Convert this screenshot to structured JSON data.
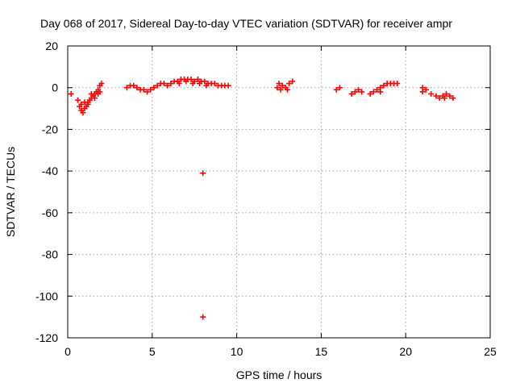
{
  "chart_data": {
    "type": "scatter",
    "title": "Day 068 of 2017, Sidereal Day-to-day VTEC variation (SDTVAR) for receiver ampr",
    "xlabel": "GPS time / hours",
    "ylabel": "SDTVAR / TECUs",
    "xlim": [
      0,
      25
    ],
    "ylim": [
      -120,
      20
    ],
    "xticks": [
      "0",
      "5",
      "10",
      "15",
      "20",
      "25"
    ],
    "yticks": [
      "20",
      "0",
      "-20",
      "-40",
      "-60",
      "-80",
      "-100",
      "-120"
    ],
    "grid": true,
    "marker": "plus",
    "color": "#ff0000",
    "series": [
      {
        "name": "SDTVAR",
        "points": [
          [
            0.2,
            -3
          ],
          [
            0.6,
            -6
          ],
          [
            0.7,
            -9
          ],
          [
            0.8,
            -11
          ],
          [
            0.9,
            -12
          ],
          [
            1.0,
            -10
          ],
          [
            1.1,
            -9
          ],
          [
            1.2,
            -7
          ],
          [
            1.3,
            -6
          ],
          [
            1.4,
            -5
          ],
          [
            1.5,
            -4
          ],
          [
            1.6,
            -3
          ],
          [
            1.7,
            -2
          ],
          [
            1.8,
            -1
          ],
          [
            1.9,
            1
          ],
          [
            2.0,
            2
          ],
          [
            0.8,
            -8
          ],
          [
            1.0,
            -7
          ],
          [
            1.2,
            -8
          ],
          [
            1.4,
            -3
          ],
          [
            1.6,
            -5
          ],
          [
            1.8,
            -3
          ],
          [
            1.9,
            -2
          ],
          [
            3.5,
            0
          ],
          [
            3.7,
            1
          ],
          [
            3.9,
            1
          ],
          [
            4.1,
            0
          ],
          [
            4.3,
            -1
          ],
          [
            4.5,
            -1
          ],
          [
            4.7,
            -2
          ],
          [
            4.9,
            -1
          ],
          [
            5.1,
            0
          ],
          [
            5.3,
            1
          ],
          [
            5.5,
            2
          ],
          [
            5.7,
            2
          ],
          [
            5.9,
            1
          ],
          [
            6.1,
            2
          ],
          [
            6.3,
            3
          ],
          [
            6.5,
            3
          ],
          [
            6.7,
            4
          ],
          [
            6.9,
            4
          ],
          [
            7.1,
            4
          ],
          [
            7.3,
            4
          ],
          [
            7.5,
            3
          ],
          [
            7.7,
            4
          ],
          [
            7.9,
            3
          ],
          [
            8.1,
            3
          ],
          [
            8.3,
            2
          ],
          [
            8.5,
            2
          ],
          [
            8.7,
            2
          ],
          [
            8.9,
            1
          ],
          [
            9.1,
            1
          ],
          [
            9.3,
            1
          ],
          [
            9.5,
            1
          ],
          [
            6.6,
            2
          ],
          [
            7.0,
            3
          ],
          [
            7.4,
            2
          ],
          [
            7.8,
            2
          ],
          [
            8.2,
            1
          ],
          [
            8.0,
            -41
          ],
          [
            8.0,
            -110
          ],
          [
            12.4,
            0
          ],
          [
            12.5,
            2
          ],
          [
            12.7,
            1
          ],
          [
            12.9,
            0
          ],
          [
            13.1,
            2
          ],
          [
            13.3,
            3
          ],
          [
            12.6,
            -1
          ],
          [
            13.0,
            -1
          ],
          [
            15.9,
            -1
          ],
          [
            16.1,
            0
          ],
          [
            16.8,
            -3
          ],
          [
            17.0,
            -2
          ],
          [
            17.2,
            -1
          ],
          [
            17.4,
            -2
          ],
          [
            17.9,
            -3
          ],
          [
            18.1,
            -2
          ],
          [
            18.3,
            -1
          ],
          [
            18.5,
            -2
          ],
          [
            18.7,
            1
          ],
          [
            18.9,
            2
          ],
          [
            19.1,
            2
          ],
          [
            19.3,
            2
          ],
          [
            19.5,
            2
          ],
          [
            18.5,
            0
          ],
          [
            21.0,
            0
          ],
          [
            21.2,
            -1
          ],
          [
            21.5,
            -3
          ],
          [
            21.8,
            -4
          ],
          [
            22.0,
            -5
          ],
          [
            22.2,
            -4
          ],
          [
            22.4,
            -3
          ],
          [
            22.6,
            -4
          ],
          [
            22.8,
            -5
          ],
          [
            22.3,
            -5
          ],
          [
            21.0,
            -2
          ]
        ]
      }
    ]
  }
}
